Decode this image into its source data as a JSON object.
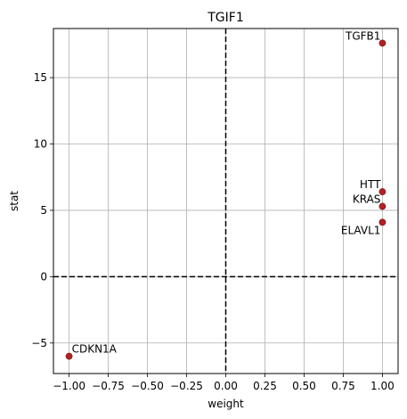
{
  "chart_data": {
    "type": "scatter",
    "title": "TGIF1",
    "xlabel": "weight",
    "ylabel": "stat",
    "xlim": [
      -1.1,
      1.1
    ],
    "ylim": [
      -7.3,
      18.7
    ],
    "xticks": [
      -1.0,
      -0.75,
      -0.5,
      -0.25,
      0.0,
      0.25,
      0.5,
      0.75,
      1.0
    ],
    "xtick_labels": [
      "−1.00",
      "−0.75",
      "−0.50",
      "−0.25",
      "0.00",
      "0.25",
      "0.50",
      "0.75",
      "1.00"
    ],
    "yticks": [
      -5,
      0,
      5,
      10,
      15
    ],
    "ytick_labels": [
      "−5",
      "0",
      "5",
      "10",
      "15"
    ],
    "grid": true,
    "reference_lines": {
      "x": 0,
      "y": 0,
      "style": "dashed"
    },
    "point_color": "#b22222",
    "points": [
      {
        "label": "TGFB1",
        "x": 1.0,
        "y": 17.6,
        "label_anchor": "end",
        "label_side": "above-left"
      },
      {
        "label": "HTT",
        "x": 1.0,
        "y": 6.4,
        "label_anchor": "end",
        "label_side": "above-left"
      },
      {
        "label": "KRAS",
        "x": 1.0,
        "y": 5.3,
        "label_anchor": "end",
        "label_side": "above-left"
      },
      {
        "label": "ELAVL1",
        "x": 1.0,
        "y": 4.1,
        "label_anchor": "end",
        "label_side": "below-left"
      },
      {
        "label": "CDKN1A",
        "x": -1.0,
        "y": -6.0,
        "label_anchor": "start",
        "label_side": "above-right"
      }
    ]
  }
}
